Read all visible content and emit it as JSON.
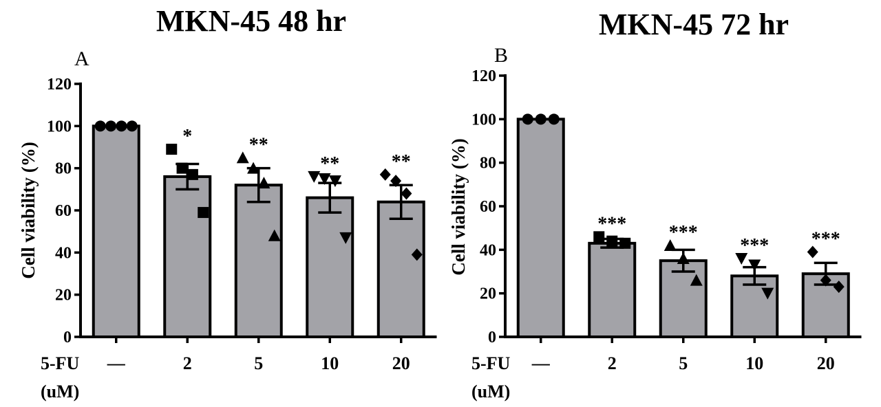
{
  "chart_data": [
    {
      "type": "bar",
      "panel": "A",
      "title": "MKN-45 48 hr",
      "ylabel": "Cell viability (%)",
      "xlabel_lines": [
        "5-FU",
        "(uM)"
      ],
      "categories": [
        "—",
        "2",
        "5",
        "10",
        "20"
      ],
      "values": [
        100,
        76,
        72,
        66,
        64
      ],
      "errors": [
        0,
        6,
        8,
        7,
        8
      ],
      "significance": [
        "",
        "*",
        "**",
        "**",
        "**"
      ],
      "marker_shapes": [
        "circle",
        "square",
        "triangle-up",
        "triangle-down",
        "diamond"
      ],
      "points": [
        [
          100,
          100,
          100,
          100
        ],
        [
          89,
          80,
          77,
          59
        ],
        [
          85,
          80,
          73,
          48
        ],
        [
          76,
          75,
          74,
          47
        ],
        [
          77,
          74,
          68,
          39
        ]
      ],
      "ylim": [
        0,
        120
      ],
      "yticks": [
        0,
        20,
        40,
        60,
        80,
        100,
        120
      ],
      "bar_color": "#a3a3a8"
    },
    {
      "type": "bar",
      "panel": "B",
      "title": "MKN-45 72 hr",
      "ylabel": "Cell viability (%)",
      "xlabel_lines": [
        "5-FU",
        "(uM)"
      ],
      "categories": [
        "—",
        "2",
        "5",
        "10",
        "20"
      ],
      "values": [
        100,
        43,
        35,
        28,
        29
      ],
      "errors": [
        0,
        2,
        5,
        4,
        5
      ],
      "significance": [
        "",
        "***",
        "***",
        "***",
        "***"
      ],
      "marker_shapes": [
        "circle",
        "square",
        "triangle-up",
        "triangle-down",
        "diamond"
      ],
      "points": [
        [
          100,
          100,
          100
        ],
        [
          46,
          44,
          43
        ],
        [
          42,
          36,
          26
        ],
        [
          36,
          33,
          20
        ],
        [
          39,
          26,
          23
        ]
      ],
      "ylim": [
        0,
        120
      ],
      "yticks": [
        0,
        20,
        40,
        60,
        80,
        100,
        120
      ],
      "bar_color": "#a3a3a8"
    }
  ]
}
